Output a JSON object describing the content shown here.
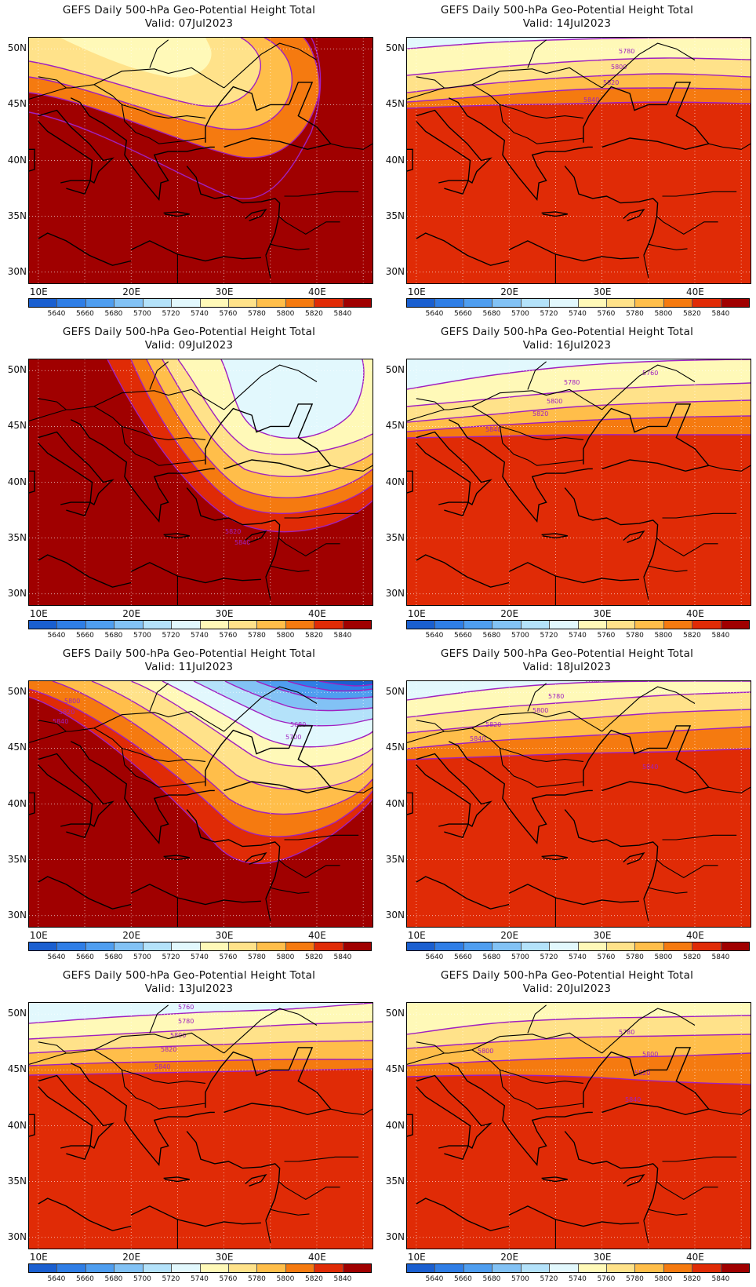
{
  "panels": [
    {
      "title": "GEFS Daily 500-hPa Geo-Potential Height Total",
      "valid": "Valid:  07Jul2023",
      "pattern": "ridge_s"
    },
    {
      "title": "GEFS Daily 500-hPa Geo-Potential Height Total",
      "valid": "Valid:  14Jul2023",
      "pattern": "zonal_high"
    },
    {
      "title": "GEFS Daily 500-hPa Geo-Potential Height Total",
      "valid": "Valid:  09Jul2023",
      "pattern": "trough_ne"
    },
    {
      "title": "GEFS Daily 500-hPa Geo-Potential Height Total",
      "valid": "Valid:  16Jul2023",
      "pattern": "zonal"
    },
    {
      "title": "GEFS Daily 500-hPa Geo-Potential Height Total",
      "valid": "Valid:  11Jul2023",
      "pattern": "trough_deep"
    },
    {
      "title": "GEFS Daily 500-hPa Geo-Potential Height Total",
      "valid": "Valid:  18Jul2023",
      "pattern": "zonal"
    },
    {
      "title": "GEFS Daily 500-hPa Geo-Potential Height Total",
      "valid": "Valid:  13Jul2023",
      "pattern": "zonal"
    },
    {
      "title": "GEFS Daily 500-hPa Geo-Potential Height Total",
      "valid": "Valid:  20Jul2023",
      "pattern": "zonal"
    }
  ],
  "lat_labels": [
    "50N",
    "45N",
    "40N",
    "35N",
    "30N"
  ],
  "lon_labels": [
    "10E",
    "20E",
    "30E",
    "40E"
  ],
  "colorbar": {
    "levels": [
      "5640",
      "5660",
      "5680",
      "5700",
      "5720",
      "5740",
      "5760",
      "5780",
      "5800",
      "5820",
      "5840"
    ],
    "colors": [
      "#1a5fd0",
      "#2f7ee6",
      "#4f9ef0",
      "#82c2f5",
      "#b4e2fa",
      "#e2f8fd",
      "#fff9b8",
      "#ffe28a",
      "#ffbe4a",
      "#f57a10",
      "#e02b06",
      "#a00000"
    ]
  },
  "contour_color": "#a020c0",
  "contour_labels": [
    "5760",
    "5780",
    "5800",
    "5820",
    "5840",
    "5680",
    "5700"
  ]
}
